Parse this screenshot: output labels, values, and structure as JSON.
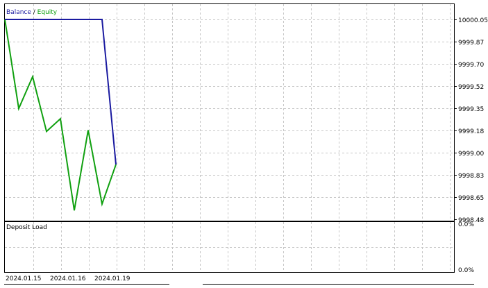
{
  "legend": {
    "balance_label": "Balance",
    "separator": " / ",
    "equity_label": "Equity",
    "balance_color": "#1a1aa0",
    "equity_color": "#10a010"
  },
  "subwindow": {
    "title": "Deposit Load",
    "ticks": [
      "0.0%",
      "0.0%"
    ]
  },
  "chart_data": [
    {
      "type": "line",
      "title": "",
      "ylim": [
        9998.48,
        10000.05
      ],
      "yticks": [
        "10000.05",
        "9999.87",
        "9999.70",
        "9999.52",
        "9999.35",
        "9999.18",
        "9999.00",
        "9998.83",
        "9998.65",
        "9998.48"
      ],
      "xticks": [
        "2024.01.15",
        "2024.01.16",
        "2024.01.19"
      ],
      "grid": true,
      "series": [
        {
          "name": "Balance",
          "color": "#1a1aa0",
          "x": [
            0,
            7,
            8
          ],
          "values": [
            10000.05,
            10000.05,
            9998.91
          ]
        },
        {
          "name": "Equity",
          "color": "#10a010",
          "x": [
            0,
            1,
            2,
            3,
            4,
            5,
            6,
            7,
            8
          ],
          "values": [
            10000.05,
            9999.35,
            9999.6,
            9999.17,
            9999.27,
            9998.55,
            9999.18,
            9998.6,
            9998.91
          ]
        }
      ]
    },
    {
      "type": "line",
      "title": "Deposit Load",
      "yticks": [
        "0.0%",
        "0.0%"
      ],
      "series": []
    }
  ]
}
